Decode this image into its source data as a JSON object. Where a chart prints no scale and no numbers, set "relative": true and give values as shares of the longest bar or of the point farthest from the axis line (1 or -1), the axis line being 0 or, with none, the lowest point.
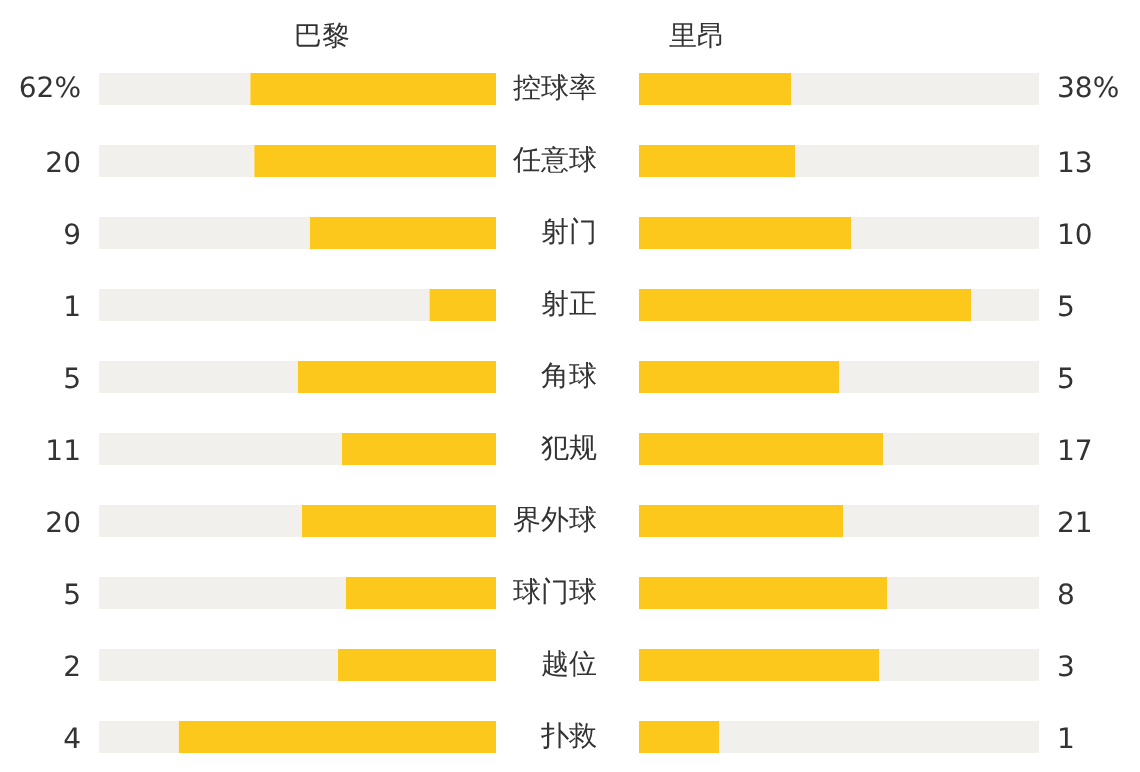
{
  "chart_data": [
    {
      "type": "bar",
      "orientation": "horizontal",
      "relative": true,
      "stacked": true,
      "title": "巴黎",
      "categories": [
        "控球率",
        "任意球",
        "射门",
        "射正",
        "角球",
        "犯规",
        "界外球",
        "球门球",
        "越位",
        "扑救"
      ],
      "tick_labels": false,
      "series": [
        {
          "color": "#fcc81b",
          "values": [
            -0.62,
            -0.61,
            -0.47,
            -0.17,
            -0.5,
            -0.39,
            -0.49,
            -0.38,
            -0.4,
            -0.8
          ]
        },
        {
          "color": "#f2f0ec",
          "values": [
            -0.38,
            -0.39,
            -0.53,
            -0.83,
            -0.5,
            -0.61,
            -0.51,
            -0.62,
            -0.6,
            -0.2
          ]
        }
      ],
      "annotations": [
        "62%",
        "20",
        "9",
        "1",
        "5",
        "11",
        "20",
        "5",
        "2",
        "4"
      ]
    },
    {
      "type": "bar",
      "orientation": "horizontal",
      "relative": true,
      "stacked": true,
      "title": "里昂",
      "categories": [
        "控球率",
        "任意球",
        "射门",
        "射正",
        "角球",
        "犯规",
        "界外球",
        "球门球",
        "越位",
        "扑救"
      ],
      "series": [
        {
          "color": "#fcc81b",
          "values": [
            0.38,
            0.39,
            0.53,
            0.83,
            0.5,
            0.61,
            0.51,
            0.62,
            0.6,
            0.2
          ]
        },
        {
          "color": "#f2f0ec",
          "values": [
            0.62,
            0.61,
            0.47,
            0.17,
            0.5,
            0.39,
            0.49,
            0.38,
            0.4,
            0.8
          ]
        }
      ],
      "annotations": [
        "38%",
        "13",
        "10",
        "5",
        "5",
        "17",
        "21",
        "8",
        "3",
        "1"
      ]
    }
  ]
}
